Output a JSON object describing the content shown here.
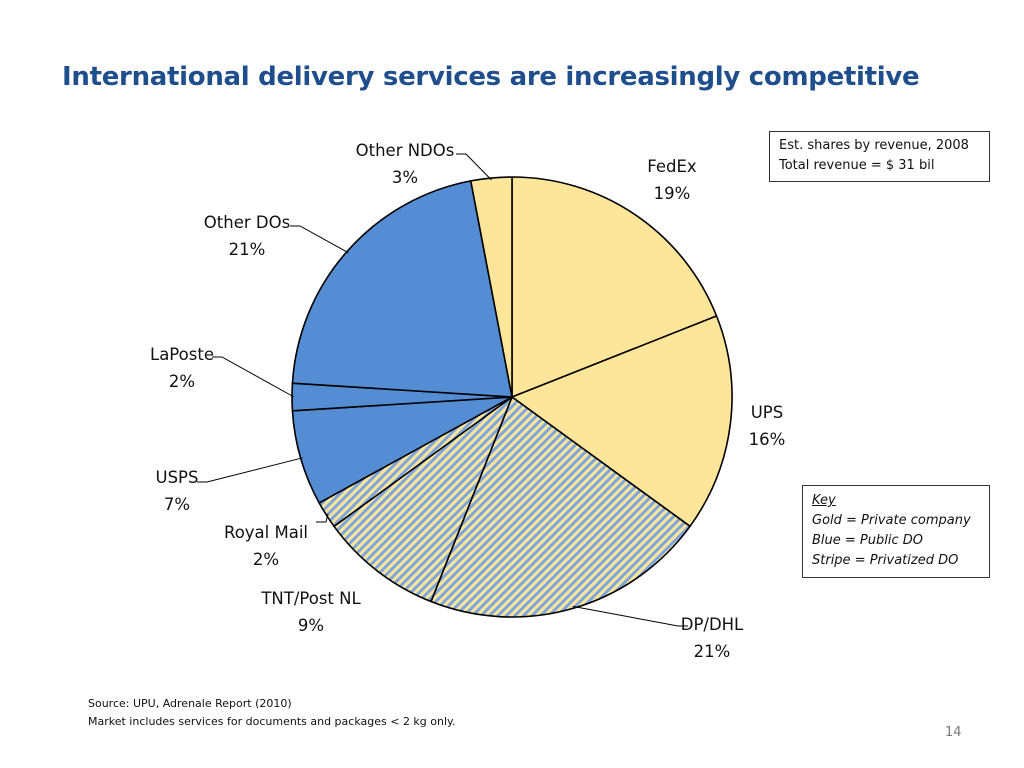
{
  "slide": {
    "title": "International delivery services are increasingly competitive",
    "page_number": "14"
  },
  "info_box": {
    "line1": "Est. shares by revenue, 2008",
    "line2": "Total revenue = $ 31 bil"
  },
  "key": {
    "title": "Key",
    "gold": "Gold = Private company",
    "blue": "Blue = Public DO",
    "stripe": "Stripe = Privatized DO"
  },
  "source": {
    "line1": "Source: UPU, Adrenale Report (2010)",
    "line2": "Market includes services for documents and packages < 2 kg only."
  },
  "colors": {
    "title": "#1F4E8C",
    "gold": "#FDE59A",
    "blue": "#548DD4",
    "stripe_a": "#FDE59A",
    "stripe_b": "#7FA6DC"
  },
  "chart_data": {
    "type": "pie",
    "slices": [
      {
        "label": "FedEx",
        "value": 19,
        "pct_label": "19%",
        "fill": "gold"
      },
      {
        "label": "UPS",
        "value": 16,
        "pct_label": "16%",
        "fill": "gold"
      },
      {
        "label": "DP/DHL",
        "value": 21,
        "pct_label": "21%",
        "fill": "stripe"
      },
      {
        "label": "TNT/Post NL",
        "value": 9,
        "pct_label": "9%",
        "fill": "stripe"
      },
      {
        "label": "Royal Mail",
        "value": 2,
        "pct_label": "2%",
        "fill": "stripe"
      },
      {
        "label": "USPS",
        "value": 7,
        "pct_label": "7%",
        "fill": "blue"
      },
      {
        "label": "LaPoste",
        "value": 2,
        "pct_label": "2%",
        "fill": "blue"
      },
      {
        "label": "Other DOs",
        "value": 21,
        "pct_label": "21%",
        "fill": "blue"
      },
      {
        "label": "Other NDOs",
        "value": 3,
        "pct_label": "3%",
        "fill": "gold"
      }
    ]
  }
}
